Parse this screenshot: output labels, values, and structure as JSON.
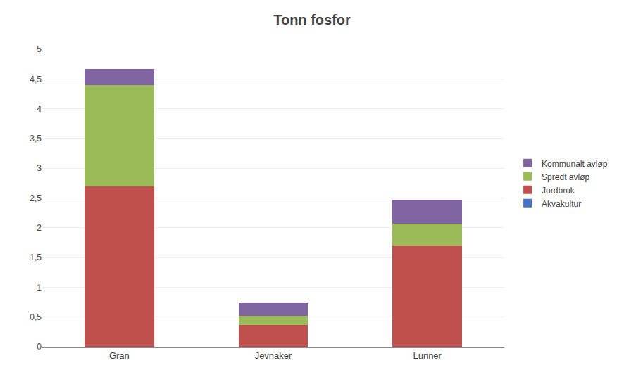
{
  "chart_data": {
    "type": "bar",
    "title": "Tonn fosfor",
    "categories": [
      "Gran",
      "Jevnaker",
      "Lunner"
    ],
    "series": [
      {
        "name": "Akvakultur",
        "color": "#4472C4",
        "values": [
          0.0,
          0.0,
          0.0
        ]
      },
      {
        "name": "Jordbruk",
        "color": "#C0504D",
        "values": [
          2.7,
          0.37,
          1.7
        ]
      },
      {
        "name": "Spredt avløp",
        "color": "#9BBB59",
        "values": [
          1.7,
          0.15,
          0.37
        ]
      },
      {
        "name": "Kommunalt avløp",
        "color": "#8064A2",
        "values": [
          0.27,
          0.22,
          0.4
        ]
      }
    ],
    "stacked": true,
    "ylim": [
      0,
      5
    ],
    "yticks": [
      0,
      {
        "value": 0.5,
        "label": "0,5"
      },
      1,
      {
        "value": 1.5,
        "label": "1,5"
      },
      2,
      {
        "value": 2.5,
        "label": "2,5"
      },
      3,
      {
        "value": 3.5,
        "label": "3,5"
      },
      4,
      {
        "value": 4.5,
        "label": "4,5"
      },
      5
    ],
    "grid": true,
    "legend": "right"
  }
}
